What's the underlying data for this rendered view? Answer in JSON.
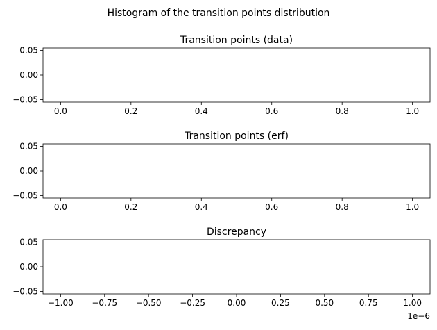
{
  "figure": {
    "suptitle": "Histogram of the transition points distribution"
  },
  "chart_data": [
    {
      "type": "bar",
      "title": "Transition points (data)",
      "xlabel": "",
      "ylabel": "",
      "xlim": [
        -0.05,
        1.05
      ],
      "ylim": [
        -0.055,
        0.055
      ],
      "xticks": [
        0.0,
        0.2,
        0.4,
        0.6,
        0.8,
        1.0
      ],
      "xtick_labels": [
        "0.0",
        "0.2",
        "0.4",
        "0.6",
        "0.8",
        "1.0"
      ],
      "yticks": [
        0.05,
        0.0,
        -0.05
      ],
      "ytick_labels": [
        "0.05",
        "0.00",
        "−0.05"
      ],
      "values": [],
      "grid": false,
      "offset_text": ""
    },
    {
      "type": "bar",
      "title": "Transition points (erf)",
      "xlabel": "",
      "ylabel": "",
      "xlim": [
        -0.05,
        1.05
      ],
      "ylim": [
        -0.055,
        0.055
      ],
      "xticks": [
        0.0,
        0.2,
        0.4,
        0.6,
        0.8,
        1.0
      ],
      "xtick_labels": [
        "0.0",
        "0.2",
        "0.4",
        "0.6",
        "0.8",
        "1.0"
      ],
      "yticks": [
        0.05,
        0.0,
        -0.05
      ],
      "ytick_labels": [
        "0.05",
        "0.00",
        "−0.05"
      ],
      "values": [],
      "grid": false,
      "offset_text": ""
    },
    {
      "type": "bar",
      "title": "Discrepancy",
      "xlabel": "",
      "ylabel": "",
      "xlim": [
        -1.1,
        1.1
      ],
      "ylim": [
        -0.055,
        0.055
      ],
      "xticks": [
        -1.0,
        -0.75,
        -0.5,
        -0.25,
        0.0,
        0.25,
        0.5,
        0.75,
        1.0
      ],
      "xtick_labels": [
        "−1.00",
        "−0.75",
        "−0.50",
        "−0.25",
        "0.00",
        "0.25",
        "0.50",
        "0.75",
        "1.00"
      ],
      "yticks": [
        0.05,
        0.0,
        -0.05
      ],
      "ytick_labels": [
        "0.05",
        "0.00",
        "−0.05"
      ],
      "values": [],
      "grid": false,
      "offset_text": "1e−6"
    }
  ]
}
